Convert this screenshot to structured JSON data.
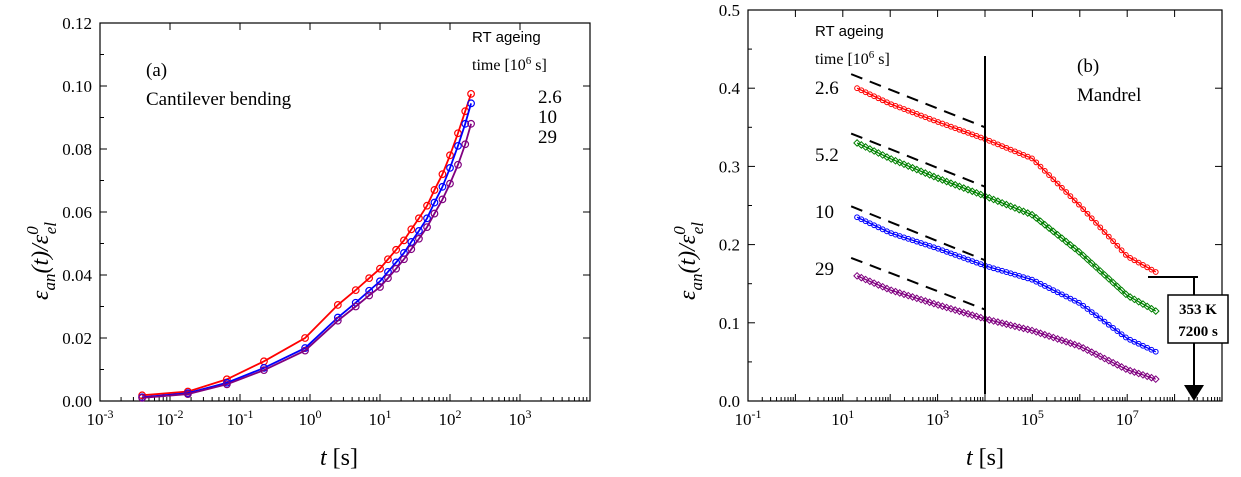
{
  "chart_data": [
    {
      "type": "line",
      "panel_label": "(a)",
      "annotation": "Cantilever bending",
      "legend_title": "RT ageing",
      "legend_title_2": "time [10",
      "legend_title_exp": "6",
      "legend_title_end": " s]",
      "xlabel": "t",
      "xlabel_unit": "[s]",
      "ylabel_main": "ε",
      "ylabel_sub": "an",
      "ylabel_mid": "(t)/ε",
      "ylabel_sup": "0",
      "ylabel_sub2": "el",
      "x_scale": "log",
      "xlim": [
        0.001,
        10000
      ],
      "ylim": [
        0,
        0.12
      ],
      "x_ticks": [
        {
          "base": "10",
          "exp": "-3"
        },
        {
          "base": "10",
          "exp": "-2"
        },
        {
          "base": "10",
          "exp": "-1"
        },
        {
          "base": "10",
          "exp": "0"
        },
        {
          "base": "10",
          "exp": "1"
        },
        {
          "base": "10",
          "exp": "2"
        },
        {
          "base": "10",
          "exp": "3"
        }
      ],
      "y_ticks": [
        "0.00",
        "0.02",
        "0.04",
        "0.06",
        "0.08",
        "0.10",
        "0.12"
      ],
      "series": [
        {
          "name": "2.6",
          "color": "#ff0000",
          "x": [
            0.004,
            0.018,
            0.065,
            0.22,
            0.85,
            2.5,
            4.5,
            7,
            10,
            13,
            17,
            22,
            28,
            36,
            47,
            60,
            78,
            100,
            130,
            165,
            200
          ],
          "y": [
            0.0018,
            0.003,
            0.0069,
            0.0126,
            0.02,
            0.0305,
            0.0352,
            0.039,
            0.042,
            0.045,
            0.048,
            0.051,
            0.0545,
            0.058,
            0.062,
            0.067,
            0.072,
            0.078,
            0.085,
            0.092,
            0.0975
          ]
        },
        {
          "name": "10",
          "color": "#0000ff",
          "x": [
            0.004,
            0.018,
            0.065,
            0.22,
            0.85,
            2.5,
            4.5,
            7,
            10,
            13,
            17,
            22,
            28,
            36,
            47,
            60,
            78,
            100,
            130,
            165,
            200
          ],
          "y": [
            0.0012,
            0.0025,
            0.0058,
            0.0105,
            0.0168,
            0.0265,
            0.0312,
            0.035,
            0.038,
            0.041,
            0.044,
            0.047,
            0.0505,
            0.054,
            0.058,
            0.063,
            0.068,
            0.074,
            0.081,
            0.088,
            0.0945
          ]
        },
        {
          "name": "29",
          "color": "#800080",
          "x": [
            0.004,
            0.018,
            0.065,
            0.22,
            0.85,
            2.5,
            4.5,
            7,
            10,
            13,
            17,
            22,
            28,
            36,
            47,
            60,
            78,
            100,
            130,
            165,
            200
          ],
          "y": [
            0.001,
            0.0022,
            0.0053,
            0.0098,
            0.016,
            0.0255,
            0.03,
            0.0335,
            0.0362,
            0.039,
            0.042,
            0.045,
            0.0482,
            0.0515,
            0.0552,
            0.0595,
            0.064,
            0.069,
            0.075,
            0.0815,
            0.088
          ]
        }
      ]
    },
    {
      "type": "scatter",
      "panel_label": "(b)",
      "annotation": "Mandrel",
      "legend_title": "RT ageing",
      "legend_title_2": "time [10",
      "legend_title_exp": "6",
      "legend_title_end": " s]",
      "xlabel": "t",
      "xlabel_unit": "[s]",
      "ylabel_main": "ε",
      "ylabel_sub": "an",
      "ylabel_mid": "(t)/ε",
      "ylabel_sup": "0",
      "ylabel_sub2": "el",
      "x_scale": "log",
      "xlim": [
        0.1,
        1000000000
      ],
      "ylim": [
        0,
        0.5
      ],
      "x_ticks": [
        {
          "base": "10",
          "exp": "-1"
        },
        {
          "base": "10",
          "exp": "1"
        },
        {
          "base": "10",
          "exp": "3"
        },
        {
          "base": "10",
          "exp": "5"
        },
        {
          "base": "10",
          "exp": "7"
        }
      ],
      "y_ticks": [
        "0.0",
        "0.1",
        "0.2",
        "0.3",
        "0.4",
        "0.5"
      ],
      "vertical_line_x": 10000,
      "box_text": [
        "353 K",
        "7200 s"
      ],
      "series": [
        {
          "name": "2.6",
          "color": "#ff0000",
          "x": [
            20,
            100,
            1000,
            10000,
            100000,
            1000000,
            10000000,
            40000000
          ],
          "y": [
            0.4,
            0.38,
            0.357,
            0.335,
            0.31,
            0.25,
            0.185,
            0.165
          ],
          "fit_x": [
            15,
            10000
          ],
          "fit_y": [
            0.418,
            0.35
          ]
        },
        {
          "name": "5.2",
          "color": "#008000",
          "x": [
            20,
            100,
            1000,
            10000,
            100000,
            1000000,
            10000000,
            40000000
          ],
          "y": [
            0.33,
            0.31,
            0.285,
            0.262,
            0.238,
            0.19,
            0.135,
            0.115
          ],
          "fit_x": [
            15,
            10000
          ],
          "fit_y": [
            0.342,
            0.274
          ]
        },
        {
          "name": "10",
          "color": "#0000ff",
          "x": [
            20,
            100,
            1000,
            10000,
            100000,
            1000000,
            10000000,
            40000000
          ],
          "y": [
            0.235,
            0.215,
            0.195,
            0.173,
            0.155,
            0.125,
            0.08,
            0.063
          ],
          "fit_x": [
            15,
            10000
          ],
          "fit_y": [
            0.249,
            0.18
          ]
        },
        {
          "name": "29",
          "color": "#800080",
          "x": [
            20,
            100,
            1000,
            10000,
            100000,
            1000000,
            10000000,
            40000000
          ],
          "y": [
            0.16,
            0.142,
            0.123,
            0.105,
            0.09,
            0.07,
            0.04,
            0.028
          ],
          "fit_x": [
            15,
            10000
          ],
          "fit_y": [
            0.183,
            0.117
          ]
        }
      ]
    }
  ]
}
